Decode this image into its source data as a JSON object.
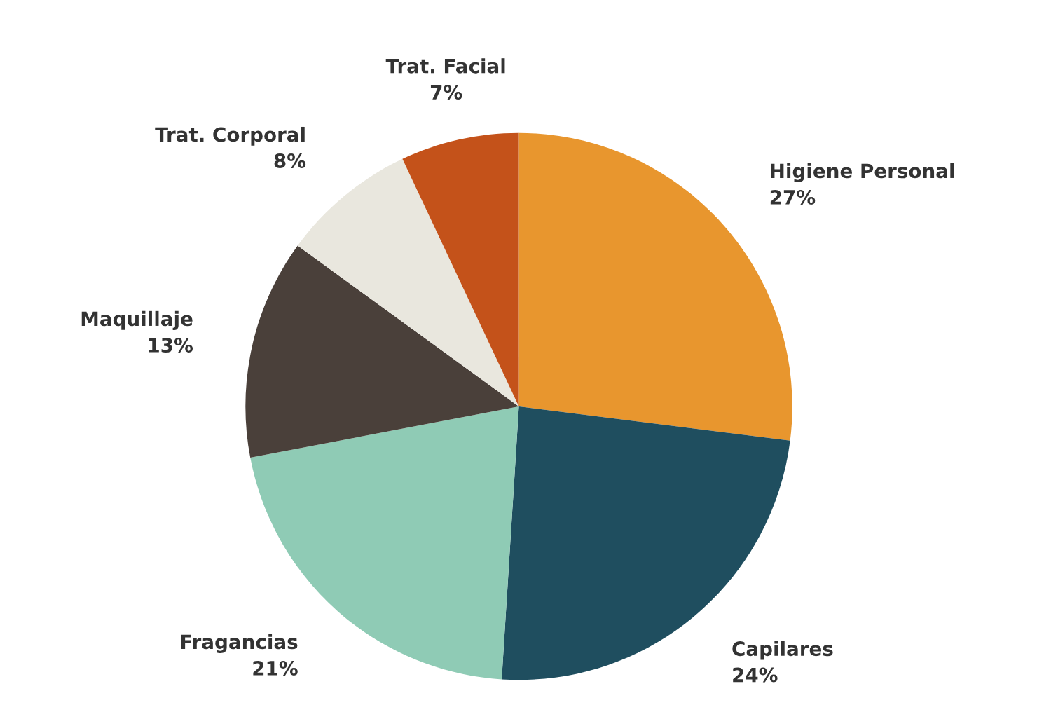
{
  "chart_data": {
    "type": "pie",
    "categories": [
      "Higiene Personal",
      "Capilares",
      "Fragancias",
      "Maquillaje",
      "Trat. Corporal",
      "Trat. Facial"
    ],
    "values": [
      27,
      24,
      21,
      13,
      8,
      7
    ],
    "colors": [
      "#e8962e",
      "#1f4e5f",
      "#8fcbb5",
      "#4a403a",
      "#e9e7de",
      "#c4521a"
    ],
    "value_labels": [
      "27%",
      "24%",
      "21%",
      "13%",
      "8%",
      "7%"
    ]
  }
}
